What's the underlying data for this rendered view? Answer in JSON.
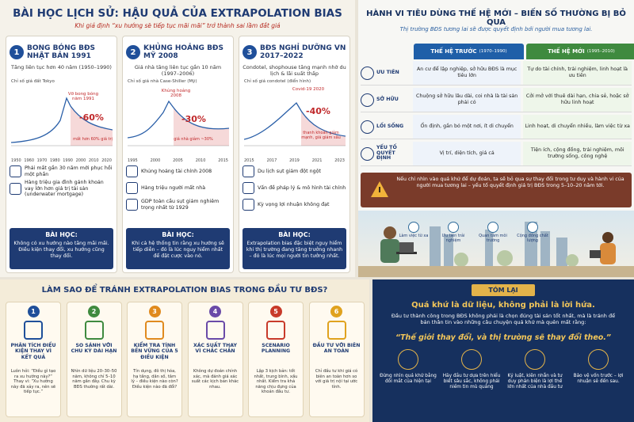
{
  "history": {
    "title": "BÀI HỌC LỊCH SỬ: HẬU QUẢ CỦA EXTRAPOLATION BIAS",
    "subtitle": "Khi giả định “xu hướng sẽ tiếp tục mãi mãi” trở thành sai lầm đắt giá",
    "cases": [
      {
        "number": "1",
        "title": "BONG BÓNG BĐS NHẬT BẢN 1991",
        "desc": "Tăng liên tục hơn 40 năm (1950–1990)",
        "chart_label": "Chỉ số giá đất Tokyo",
        "event": "Vỡ bong bóng năm 1991",
        "drop": "-60%",
        "drop_note": "mất hơn 60% giá trị",
        "years": [
          "1950",
          "1960",
          "1970",
          "1980",
          "1990",
          "2000",
          "2010",
          "2020"
        ],
        "impacts": [
          "Phải mất gần 30 năm mới phục hồi một phần",
          "Hàng triệu gia đình gánh khoản vay lớn hơn giá trị tài sản (underwater mortgage)"
        ],
        "lesson_title": "BÀI HỌC:",
        "lesson": "Không có xu hướng nào tăng mãi mãi. Điều kiện thay đổi, xu hướng cũng thay đổi."
      },
      {
        "number": "2",
        "title": "KHỦNG HOẢNG BĐS MỸ 2008",
        "desc": "Giá nhà tăng liên tục gần 10 năm (1997–2006)",
        "chart_label": "Chỉ số giá nhà Case-Shiller (Mỹ)",
        "event": "Khủng hoảng 2008",
        "drop": "-30%",
        "drop_note": "giá nhà giảm ~30%",
        "years": [
          "1995",
          "2000",
          "2005",
          "2010",
          "2015"
        ],
        "impacts": [
          "Khủng hoảng tài chính 2008",
          "Hàng triệu người mất nhà",
          "GDP toàn cầu sụt giảm nghiêm trọng nhất từ 1929"
        ],
        "lesson_title": "BÀI HỌC:",
        "lesson": "Khi cả hệ thống tin rằng xu hướng sẽ tiếp diễn – đó là lúc nguy hiểm nhất để đặt cược vào nó."
      },
      {
        "number": "3",
        "title": "BĐS NGHỈ DƯỠNG VN 2017–2022",
        "desc": "Condotel, shophouse tăng mạnh nhờ du lịch & lãi suất thấp",
        "chart_label": "Chỉ số giá condotel (điển hình)",
        "event": "Covid-19 2020",
        "drop": "-40%",
        "drop_note": "thanh khoản giảm mạnh, giá giảm sâu",
        "years": [
          "2015",
          "2017",
          "2019",
          "2021",
          "2023"
        ],
        "impacts": [
          "Du lịch sụt giảm đột ngột",
          "Vấn đề pháp lý & mô hình tài chính",
          "Kỳ vọng lợi nhuận không đạt"
        ],
        "lesson_title": "BÀI HỌC:",
        "lesson": "Extrapolation bias đặc biệt nguy hiểm khi thị trường đang tăng trưởng nhanh – đó là lúc mọi người tin tưởng nhất."
      }
    ]
  },
  "generations": {
    "title": "HÀNH VI TIÊU DÙNG THẾ HỆ MỚI – BIẾN SỐ THƯỜNG BỊ BỎ QUA",
    "subtitle": "Thị trường BĐS tương lai sẽ được quyết định bởi người mua tương lai.",
    "headers": [
      {
        "name": "THẾ HỆ TRƯỚC",
        "years": "(1970–1990)"
      },
      {
        "name": "THẾ HỆ MỚI",
        "years": "(1995–2010)"
      }
    ],
    "rows": [
      {
        "label": "ƯU TIÊN",
        "old": "An cư để lập nghiệp, sở hữu BĐS là mục tiêu lớn",
        "new": "Tự do tài chính, trải nghiệm, linh hoạt là ưu tiên"
      },
      {
        "label": "SỞ HỮU",
        "old": "Chuộng sở hữu lâu dài, coi nhà là tài sản phải có",
        "new": "Cởi mở với thuê dài hạn, chia sẻ, hoặc sở hữu linh hoạt"
      },
      {
        "label": "LỐI SỐNG",
        "old": "Ổn định, gắn bó một nơi, ít di chuyển",
        "new": "Linh hoạt, di chuyển nhiều, làm việc từ xa"
      },
      {
        "label": "YẾU TỐ QUYẾT ĐỊNH",
        "old": "Vị trí, diện tích, giá cả",
        "new": "Tiện ích, cộng đồng, trải nghiệm, môi trường sống, công nghệ"
      }
    ],
    "warning": "Nếu chỉ nhìn vào quá khứ để dự đoán, ta sẽ bỏ qua sự thay đổi trong tư duy và hành vi của người mua tương lai – yếu tố quyết định giá trị BĐS trong 5–10–20 năm tới.",
    "trends": [
      "Làm việc từ xa",
      "Ưu tiên trải nghiệm",
      "Quan tâm môi trường",
      "Cộng đồng chất lượng"
    ]
  },
  "avoid": {
    "title": "LÀM SAO ĐỂ TRÁNH EXTRAPOLATION BIAS TRONG ĐẦU TƯ BĐS?",
    "steps": [
      {
        "number": "1",
        "title": "PHÂN TÍCH ĐIỀU KIỆN THAY VÌ KẾT QUẢ",
        "text": "Luôn hỏi: “Điều gì tạo ra xu hướng này?” Thay vì: “Xu hướng này đã xảy ra, nên sẽ tiếp tục.”"
      },
      {
        "number": "2",
        "title": "SO SÁNH VỚI CHU KỲ DÀI HẠN",
        "text": "Nhìn dữ liệu 20–30–50 năm, không chỉ 5–10 năm gần đây. Chu kỳ BĐS thường rất dài."
      },
      {
        "number": "3",
        "title": "KIỂM TRA TÍNH BỀN VỮNG CỦA 5 ĐIỀU KIỆN",
        "text": "Tín dụng, đô thị hóa, hạ tầng, dân số, tâm lý – điều kiện nào còn? Điều kiện nào đã đổi?"
      },
      {
        "number": "4",
        "title": "XÁC SUẤT THAY VÌ CHẮC CHẮN",
        "text": "Không dự đoán chính xác, mà đánh giá xác suất các kịch bản khác nhau."
      },
      {
        "number": "5",
        "title": "SCENARIO PLANNING",
        "text": "Lập 3 kịch bản: tốt nhất, trung bình, xấu nhất. Kiểm tra khả năng chịu đựng của khoản đầu tư."
      },
      {
        "number": "6",
        "title": "ĐẦU TƯ VỚI BIÊN AN TOÀN",
        "text": "Chỉ đầu tư khi giá có biên an toàn hơn so với giá trị nội tại ước tính."
      }
    ]
  },
  "summary": {
    "title": "TÓM LẠI",
    "headline": "Quá khứ là dữ liệu, không phải là lời hứa.",
    "text": "Đầu tư thành công trong BĐS không phải là chọn đúng tài sản tốt nhất, mà là tránh để bản thân tin vào những câu chuyện quá khứ mà quên mất rằng:",
    "quote": "“Thế giới thay đổi, và thị trường sẽ thay đổi theo.”",
    "points": [
      "Đừng nhìn quá khứ bằng đôi mắt của hiện tại",
      "Hãy đầu tư dựa trên hiểu biết sâu sắc, không phải niềm tin mù quáng",
      "Kỷ luật, kiên nhẫn và tư duy phản biện là lợi thế lớn nhất của nhà đầu tư",
      "Bảo vệ vốn trước – lợi nhuận sẽ đến sau."
    ]
  }
}
